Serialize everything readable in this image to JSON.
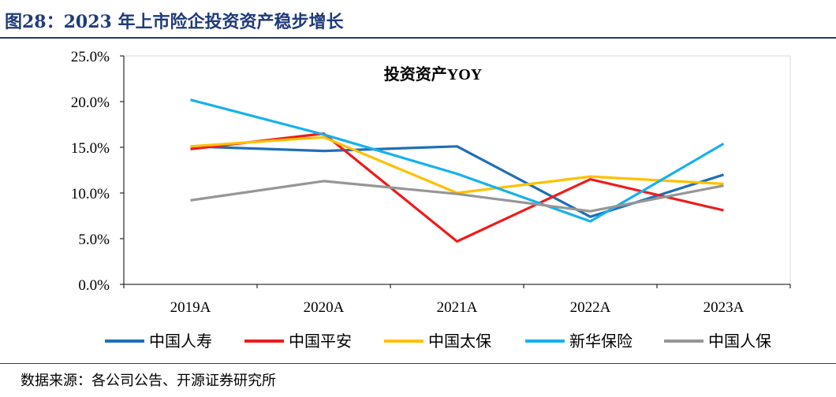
{
  "figure": {
    "title": "图28：2023 年上市险企投资资产稳步增长",
    "source": "数据来源：各公司公告、开源证券研究所"
  },
  "chart_data": {
    "type": "line",
    "title": "投资资产YOY",
    "xlabel": "",
    "ylabel": "",
    "categories": [
      "2019A",
      "2020A",
      "2021A",
      "2022A",
      "2023A"
    ],
    "ylim": [
      0,
      25
    ],
    "yticks": [
      "0.0%",
      "5.0%",
      "10.0%",
      "15.0%",
      "20.0%",
      "25.0%"
    ],
    "grid": false,
    "legend_position": "bottom",
    "series": [
      {
        "name": "中国人寿",
        "color": "#1f6fb5",
        "values": [
          15.1,
          14.6,
          15.1,
          7.4,
          12.0
        ]
      },
      {
        "name": "中国平安",
        "color": "#ee1c1c",
        "values": [
          14.8,
          16.5,
          4.7,
          11.5,
          8.1
        ]
      },
      {
        "name": "中国太保",
        "color": "#ffc000",
        "values": [
          15.1,
          16.1,
          10.0,
          11.8,
          11.0
        ]
      },
      {
        "name": "新华保险",
        "color": "#16b1ec",
        "values": [
          20.2,
          16.4,
          12.1,
          6.9,
          15.4
        ]
      },
      {
        "name": "中国人保",
        "color": "#969696",
        "values": [
          9.2,
          11.3,
          9.9,
          8.0,
          10.8
        ]
      }
    ]
  }
}
